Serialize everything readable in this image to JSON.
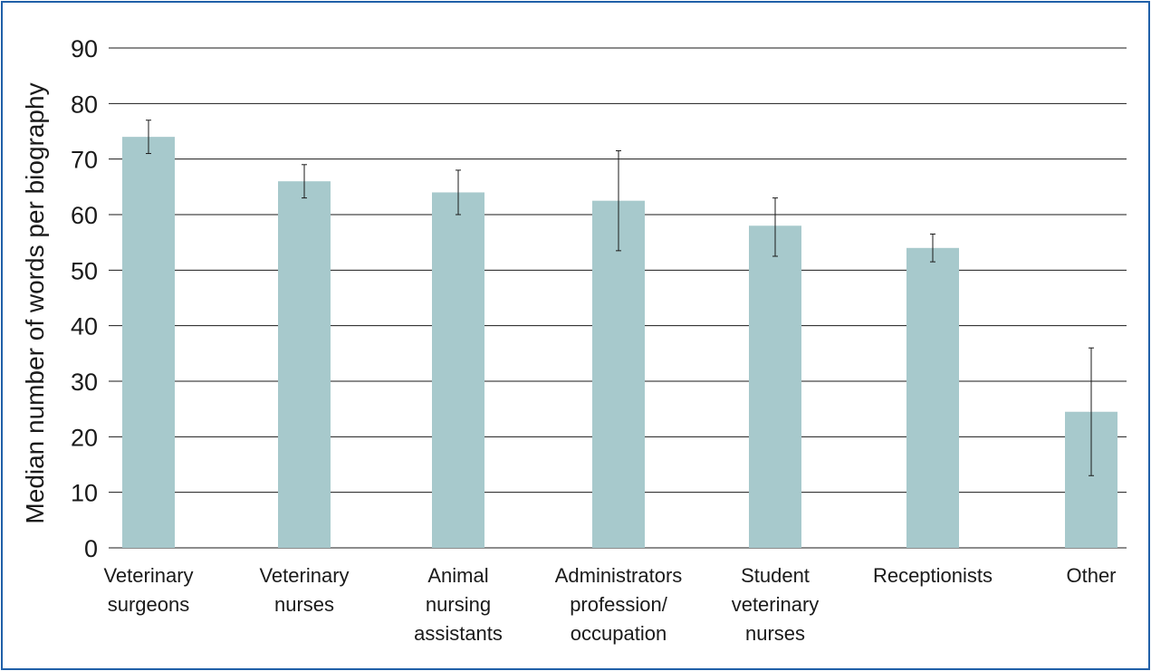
{
  "chart_data": {
    "type": "bar",
    "title": "",
    "ylabel": "Median number of words per biography",
    "xlabel": "",
    "ylim": [
      0,
      90
    ],
    "yticks": [
      0,
      10,
      20,
      30,
      40,
      50,
      60,
      70,
      80,
      90
    ],
    "grid": true,
    "bar_color": "#a7c9cc",
    "categories": [
      [
        "Veterinary",
        "surgeons"
      ],
      [
        "Veterinary",
        "nurses"
      ],
      [
        "Animal",
        "nursing",
        "assistants"
      ],
      [
        "Administrators",
        "profession/",
        "occupation"
      ],
      [
        "Student",
        "veterinary",
        "nurses"
      ],
      [
        "Receptionists"
      ],
      [
        "Other"
      ]
    ],
    "values": [
      74,
      66,
      64,
      62.5,
      58,
      54,
      24.5
    ],
    "error_bars": [
      [
        71,
        77
      ],
      [
        63,
        69
      ],
      [
        60,
        68
      ],
      [
        53.5,
        71.5
      ],
      [
        52.5,
        63
      ],
      [
        51.5,
        56.5
      ],
      [
        13,
        36
      ]
    ]
  }
}
